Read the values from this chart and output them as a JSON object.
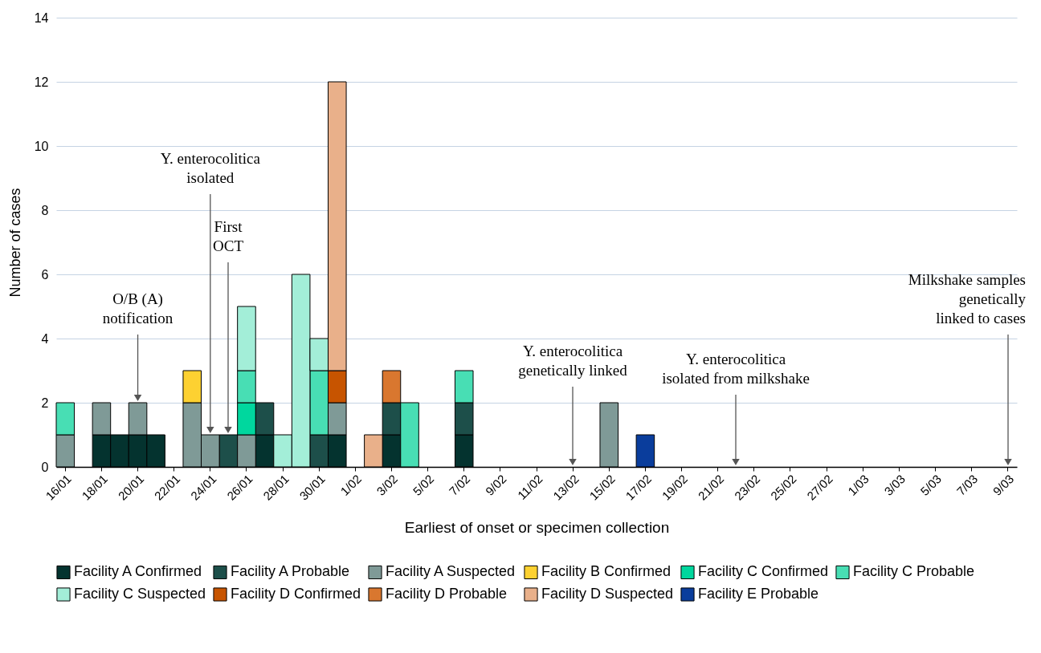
{
  "chart_data": {
    "type": "bar",
    "stacked": true,
    "xlabel": "Earliest of onset or specimen collection",
    "ylabel": "Number of cases",
    "categories": [
      "16/01",
      null,
      "18/01",
      null,
      "20/01",
      null,
      "22/01",
      null,
      "24/01",
      null,
      "26/01",
      null,
      "28/01",
      null,
      "30/01",
      null,
      "1/02",
      null,
      "3/02",
      null,
      "5/02",
      null,
      "7/02",
      null,
      "9/02",
      null,
      "11/02",
      null,
      "13/02",
      null,
      "15/02",
      null,
      "17/02",
      null,
      "19/02",
      null,
      "21/02",
      null,
      "23/02",
      null,
      "25/02",
      null,
      "27/02",
      null,
      "1/03",
      null,
      "3/03",
      null,
      "5/03",
      null,
      "7/03",
      null,
      "9/03"
    ],
    "ylim": [
      0,
      14
    ],
    "yticks": [
      0,
      2,
      4,
      6,
      8,
      10,
      12,
      14
    ],
    "grid": "y",
    "legend": "bottom",
    "series": [
      {
        "name": "Facility A Confirmed",
        "color": "#04332f",
        "values": [
          null,
          null,
          1,
          1,
          1,
          1,
          null,
          null,
          null,
          null,
          null,
          1,
          null,
          null,
          null,
          1,
          null,
          null,
          1,
          null,
          null,
          null,
          1,
          null,
          null,
          null,
          null,
          null,
          null,
          null,
          null,
          null,
          null,
          null,
          null,
          null,
          null,
          null,
          null,
          null,
          null,
          null,
          null,
          null,
          null,
          null,
          null,
          null,
          null,
          null,
          null,
          null,
          null
        ]
      },
      {
        "name": "Facility A Probable",
        "color": "#1d4f4a",
        "values": [
          null,
          null,
          null,
          null,
          null,
          null,
          null,
          null,
          null,
          1,
          null,
          1,
          null,
          null,
          1,
          null,
          null,
          null,
          1,
          null,
          null,
          null,
          1,
          null,
          null,
          null,
          null,
          null,
          null,
          null,
          null,
          null,
          null,
          null,
          null,
          null,
          null,
          null,
          null,
          null,
          null,
          null,
          null,
          null,
          null,
          null,
          null,
          null,
          null,
          null,
          null,
          null,
          null
        ]
      },
      {
        "name": "Facility A Suspected",
        "color": "#7f9a97",
        "values": [
          1,
          null,
          1,
          null,
          1,
          null,
          null,
          2,
          1,
          null,
          1,
          null,
          null,
          null,
          null,
          1,
          null,
          null,
          null,
          null,
          null,
          null,
          null,
          null,
          null,
          null,
          null,
          null,
          null,
          null,
          2,
          null,
          null,
          null,
          null,
          null,
          null,
          null,
          null,
          null,
          null,
          null,
          null,
          null,
          null,
          null,
          null,
          null,
          null,
          null,
          null,
          null,
          null
        ]
      },
      {
        "name": "Facility B Confirmed",
        "color": "#fdd131",
        "values": [
          null,
          null,
          null,
          null,
          null,
          null,
          null,
          1,
          null,
          null,
          null,
          null,
          null,
          null,
          null,
          null,
          null,
          null,
          null,
          null,
          null,
          null,
          null,
          null,
          null,
          null,
          null,
          null,
          null,
          null,
          null,
          null,
          null,
          null,
          null,
          null,
          null,
          null,
          null,
          null,
          null,
          null,
          null,
          null,
          null,
          null,
          null,
          null,
          null,
          null,
          null,
          null,
          null
        ]
      },
      {
        "name": "Facility C Confirmed",
        "color": "#00d79e",
        "values": [
          null,
          null,
          null,
          null,
          null,
          null,
          null,
          null,
          null,
          null,
          1,
          null,
          null,
          null,
          null,
          null,
          null,
          null,
          null,
          null,
          null,
          null,
          null,
          null,
          null,
          null,
          null,
          null,
          null,
          null,
          null,
          null,
          null,
          null,
          null,
          null,
          null,
          null,
          null,
          null,
          null,
          null,
          null,
          null,
          null,
          null,
          null,
          null,
          null,
          null,
          null,
          null,
          null
        ]
      },
      {
        "name": "Facility C Probable",
        "color": "#48deb4",
        "values": [
          1,
          null,
          null,
          null,
          null,
          null,
          null,
          null,
          null,
          null,
          1,
          null,
          null,
          null,
          2,
          null,
          null,
          null,
          null,
          2,
          null,
          null,
          1,
          null,
          null,
          null,
          null,
          null,
          null,
          null,
          null,
          null,
          null,
          null,
          null,
          null,
          null,
          null,
          null,
          null,
          null,
          null,
          null,
          null,
          null,
          null,
          null,
          null,
          null,
          null,
          null,
          null,
          null
        ]
      },
      {
        "name": "Facility C Suspected",
        "color": "#a3eed8",
        "values": [
          null,
          null,
          null,
          null,
          null,
          null,
          null,
          null,
          null,
          null,
          2,
          null,
          1,
          6,
          1,
          null,
          null,
          null,
          null,
          null,
          null,
          null,
          null,
          null,
          null,
          null,
          null,
          null,
          null,
          null,
          null,
          null,
          null,
          null,
          null,
          null,
          null,
          null,
          null,
          null,
          null,
          null,
          null,
          null,
          null,
          null,
          null,
          null,
          null,
          null,
          null,
          null,
          null
        ]
      },
      {
        "name": "Facility D Confirmed",
        "color": "#c75400",
        "values": [
          null,
          null,
          null,
          null,
          null,
          null,
          null,
          null,
          null,
          null,
          null,
          null,
          null,
          null,
          null,
          1,
          null,
          null,
          null,
          null,
          null,
          null,
          null,
          null,
          null,
          null,
          null,
          null,
          null,
          null,
          null,
          null,
          null,
          null,
          null,
          null,
          null,
          null,
          null,
          null,
          null,
          null,
          null,
          null,
          null,
          null,
          null,
          null,
          null,
          null,
          null,
          null,
          null
        ]
      },
      {
        "name": "Facility D Probable",
        "color": "#d9772f",
        "values": [
          null,
          null,
          null,
          null,
          null,
          null,
          null,
          null,
          null,
          null,
          null,
          null,
          null,
          null,
          null,
          null,
          null,
          null,
          1,
          null,
          null,
          null,
          null,
          null,
          null,
          null,
          null,
          null,
          null,
          null,
          null,
          null,
          null,
          null,
          null,
          null,
          null,
          null,
          null,
          null,
          null,
          null,
          null,
          null,
          null,
          null,
          null,
          null,
          null,
          null,
          null,
          null,
          null
        ]
      },
      {
        "name": "Facility D Suspected",
        "color": "#e9b08a",
        "values": [
          null,
          null,
          null,
          null,
          null,
          null,
          null,
          null,
          null,
          null,
          null,
          null,
          null,
          null,
          null,
          9,
          null,
          1,
          null,
          null,
          null,
          null,
          null,
          null,
          null,
          null,
          null,
          null,
          null,
          null,
          null,
          null,
          null,
          null,
          null,
          null,
          null,
          null,
          null,
          null,
          null,
          null,
          null,
          null,
          null,
          null,
          null,
          null,
          null,
          null,
          null,
          null,
          null
        ]
      },
      {
        "name": "Facility E Probable",
        "color": "#0a3d9c",
        "values": [
          null,
          null,
          null,
          null,
          null,
          null,
          null,
          null,
          null,
          null,
          null,
          null,
          null,
          null,
          null,
          null,
          null,
          null,
          null,
          null,
          null,
          null,
          null,
          null,
          null,
          null,
          null,
          null,
          null,
          null,
          null,
          null,
          1,
          null,
          null,
          null,
          null,
          null,
          null,
          null,
          null,
          null,
          null,
          null,
          null,
          null,
          null,
          null,
          null,
          null,
          null,
          null,
          null
        ]
      }
    ],
    "annotations": [
      {
        "text": "O/B (A)\nnotification",
        "x": "20/01",
        "y": 2
      },
      {
        "text": "Y. enterocolitica\nisolated",
        "x": "24/01",
        "y": 1
      },
      {
        "text": "First\nOCT",
        "y": 1
      },
      "Y. enterocolitica\ngenetically linked",
      "Y. enterocolitica\nisolated from milkshake",
      "Milkshake samples\ngenetically\nlinked to cases"
    ]
  }
}
